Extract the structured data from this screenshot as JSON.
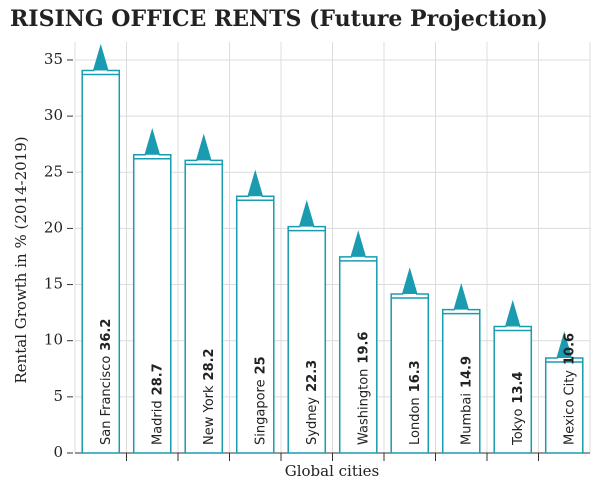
{
  "chart_data": {
    "type": "bar",
    "title": "RISING OFFICE RENTS (Future Projection)",
    "y_label": "Rental Growth in % (2014-2019)",
    "x_label": "Global cities",
    "categories": [
      "San Francisco",
      "Madrid",
      "New York",
      "Singapore",
      "Sydney",
      "Washington",
      "London",
      "Mumbai",
      "Tokyo",
      "Mexico City"
    ],
    "values": [
      36.2,
      28.7,
      28.2,
      25,
      22.3,
      19.6,
      16.3,
      14.9,
      13.4,
      10.6
    ],
    "color": "#1a9bb0",
    "title_color": "#e0522a",
    "ylim": [
      0,
      36.6
    ],
    "yticks": [
      0,
      5,
      10,
      15,
      20,
      25,
      30,
      35
    ],
    "grid": true
  }
}
